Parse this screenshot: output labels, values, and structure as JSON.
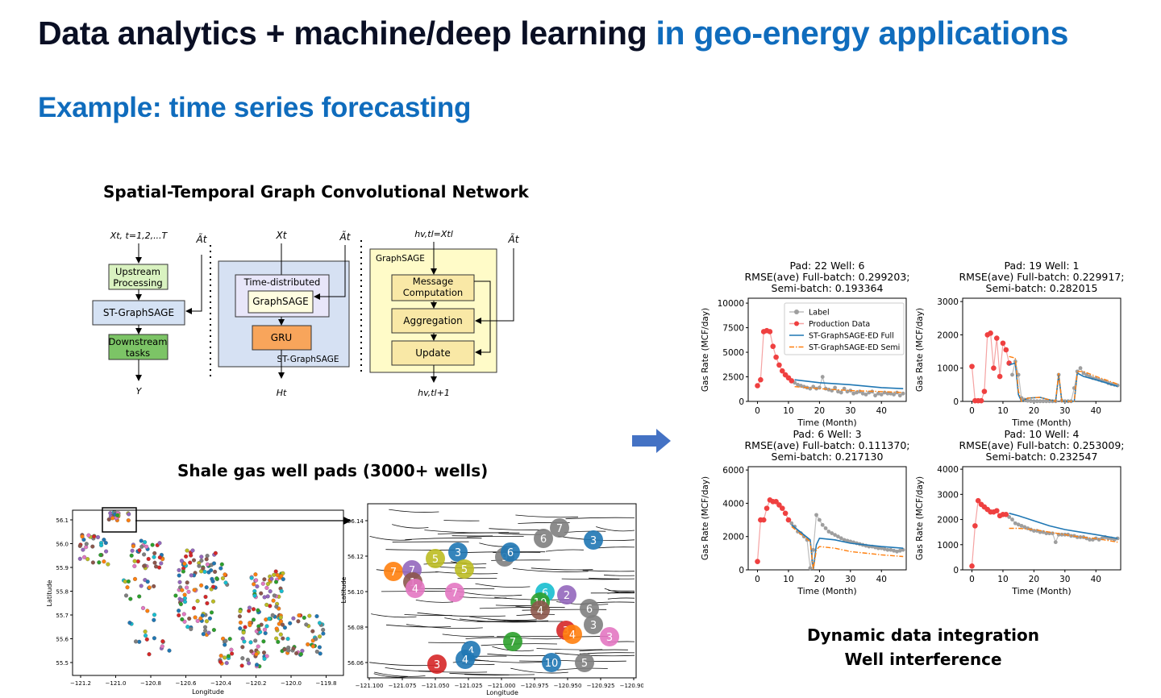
{
  "slide": {
    "title_main": "Data analytics + machine/deep learning",
    "title_accent": "in geo-energy applications",
    "subtitle": "Example: time series forecasting"
  },
  "diagram": {
    "caption": "Spatial-Temporal Graph Convolutional Network",
    "left": {
      "input": "Xt, t=1,2,...T",
      "adj": "Ãt",
      "upstream": [
        "Upstream",
        "Processing"
      ],
      "stgs": "ST-GraphSAGE",
      "downstream": [
        "Downstream",
        "tasks"
      ],
      "output": "Y"
    },
    "middle": {
      "input": "Xt",
      "adj": "Ãt",
      "td": "Time-distributed",
      "gs": "GraphSAGE",
      "gru": "GRU",
      "label": "ST-GraphSAGE",
      "output": "Ht"
    },
    "right": {
      "input": "hv,tl=Xtl",
      "adj": "Ãt",
      "label": "GraphSAGE",
      "msg": [
        "Message",
        "Computation"
      ],
      "agg": "Aggregation",
      "upd": "Update",
      "output": "hv,tl+1"
    }
  },
  "map": {
    "caption": "Shale gas well pads (3000+ wells)",
    "left": {
      "xlabel": "Longitude",
      "ylabel": "Latitude",
      "xticks": [
        "−121.2",
        "−121.0",
        "−120.8",
        "−120.6",
        "−120.4",
        "−120.2",
        "−120.0",
        "−119.8"
      ],
      "yticks": [
        "56.1",
        "56.0",
        "55.9",
        "55.8",
        "55.7",
        "55.6",
        "55.5"
      ]
    },
    "right": {
      "xlabel": "Longitude",
      "ylabel": "Latitude",
      "xticks": [
        "−121.100",
        "−121.075",
        "−121.050",
        "−121.025",
        "−121.000",
        "−120.975",
        "−120.950",
        "−120.925",
        "−120.900"
      ],
      "yticks": [
        "56.14",
        "56.12",
        "56.10",
        "56.08",
        "56.06"
      ]
    },
    "pad_markers": [
      {
        "n": "7",
        "c": "#ff7f0e"
      },
      {
        "n": "7",
        "c": "#9467bd"
      },
      {
        "n": "5",
        "c": "#bcbd22"
      },
      {
        "n": "3",
        "c": "#1f77b4"
      },
      {
        "n": "5",
        "c": "#bcbd22"
      },
      {
        "n": "9",
        "c": "#7f7f7f"
      },
      {
        "n": "6",
        "c": "#1f77b4"
      },
      {
        "n": "6",
        "c": "#7f7f7f"
      },
      {
        "n": "7",
        "c": "#7f7f7f"
      },
      {
        "n": "3",
        "c": "#1f77b4"
      },
      {
        "n": "1",
        "c": "#8c564b"
      },
      {
        "n": "4",
        "c": "#e377c2"
      },
      {
        "n": "7",
        "c": "#e377c2"
      },
      {
        "n": "6",
        "c": "#17becf"
      },
      {
        "n": "2",
        "c": "#9467bd"
      },
      {
        "n": "10",
        "c": "#2ca02c"
      },
      {
        "n": "6",
        "c": "#7f7f7f"
      },
      {
        "n": "4",
        "c": "#8c564b"
      },
      {
        "n": "3",
        "c": "#7f7f7f"
      },
      {
        "n": "3",
        "c": "#d62728"
      },
      {
        "n": "4",
        "c": "#ff7f0e"
      },
      {
        "n": "3",
        "c": "#e377c2"
      },
      {
        "n": "7",
        "c": "#2ca02c"
      },
      {
        "n": "4",
        "c": "#1f77b4"
      },
      {
        "n": "4",
        "c": "#1f77b4"
      },
      {
        "n": "3",
        "c": "#d62728"
      },
      {
        "n": "10",
        "c": "#1f77b4"
      },
      {
        "n": "5",
        "c": "#7f7f7f"
      }
    ]
  },
  "chart_data": [
    {
      "type": "line",
      "title": [
        "Pad: 22 Well: 6",
        "RMSE(ave) Full-batch: 0.299203;",
        "Semi-batch: 0.193364"
      ],
      "xlabel": "Time (Month)",
      "ylabel": "Gas Rate (MCF/day)",
      "xlim": [
        -3,
        48
      ],
      "ylim": [
        0,
        10500
      ],
      "yticks": [
        0,
        2500,
        5000,
        7500,
        10000
      ],
      "xticks": [
        0,
        10,
        20,
        30,
        40
      ],
      "legend": [
        "Label",
        "Production Data",
        "ST-GraphSAGE-ED Full",
        "ST-GraphSAGE-ED Semi"
      ],
      "production": [
        [
          0,
          1600
        ],
        [
          1,
          2200
        ],
        [
          2,
          7100
        ],
        [
          3,
          7200
        ],
        [
          4,
          7100
        ],
        [
          5,
          5600
        ],
        [
          6,
          4500
        ],
        [
          7,
          3700
        ],
        [
          8,
          3100
        ],
        [
          9,
          2700
        ],
        [
          10,
          2400
        ],
        [
          11,
          2100
        ]
      ],
      "label": [
        [
          12,
          1900
        ],
        [
          13,
          1700
        ],
        [
          14,
          1600
        ],
        [
          15,
          1500
        ],
        [
          16,
          1400
        ],
        [
          17,
          1300
        ],
        [
          18,
          1500
        ],
        [
          19,
          1300
        ],
        [
          20,
          1400
        ],
        [
          21,
          2500
        ],
        [
          22,
          1300
        ],
        [
          23,
          1200
        ],
        [
          24,
          1100
        ],
        [
          25,
          1400
        ],
        [
          26,
          1000
        ],
        [
          27,
          900
        ],
        [
          28,
          1300
        ],
        [
          29,
          1000
        ],
        [
          30,
          1100
        ],
        [
          31,
          800
        ],
        [
          32,
          900
        ],
        [
          33,
          1000
        ],
        [
          34,
          800
        ],
        [
          35,
          700
        ],
        [
          36,
          900
        ],
        [
          37,
          1000
        ],
        [
          38,
          600
        ],
        [
          39,
          800
        ],
        [
          40,
          700
        ],
        [
          41,
          900
        ],
        [
          42,
          800
        ],
        [
          43,
          800
        ],
        [
          44,
          700
        ],
        [
          45,
          900
        ],
        [
          46,
          600
        ],
        [
          47,
          800
        ]
      ],
      "full": [
        [
          12,
          2200
        ],
        [
          20,
          1900
        ],
        [
          30,
          1700
        ],
        [
          40,
          1400
        ],
        [
          47,
          1300
        ]
      ],
      "semi": [
        [
          12,
          1500
        ],
        [
          20,
          1300
        ],
        [
          30,
          1100
        ],
        [
          40,
          1000
        ],
        [
          47,
          900
        ]
      ]
    },
    {
      "type": "line",
      "title": [
        "Pad: 19 Well: 1",
        "RMSE(ave) Full-batch: 0.229917;",
        "Semi-batch: 0.282015"
      ],
      "xlabel": "Time (Month)",
      "ylabel": "Gas Rate (MCF/day)",
      "xlim": [
        -3,
        48
      ],
      "ylim": [
        0,
        3100
      ],
      "yticks": [
        0,
        1000,
        2000,
        3000
      ],
      "xticks": [
        0,
        10,
        20,
        30,
        40
      ],
      "production": [
        [
          0,
          1050
        ],
        [
          1,
          20
        ],
        [
          2,
          20
        ],
        [
          3,
          20
        ],
        [
          4,
          300
        ],
        [
          5,
          2000
        ],
        [
          6,
          2050
        ],
        [
          7,
          1000
        ],
        [
          8,
          1900
        ],
        [
          9,
          750
        ],
        [
          10,
          1750
        ],
        [
          11,
          1550
        ],
        [
          12,
          1150
        ]
      ],
      "label": [
        [
          13,
          800
        ],
        [
          14,
          1200
        ],
        [
          15,
          800
        ],
        [
          16,
          100
        ],
        [
          17,
          50
        ],
        [
          18,
          20
        ],
        [
          19,
          10
        ],
        [
          20,
          5
        ],
        [
          21,
          5
        ],
        [
          22,
          5
        ],
        [
          23,
          5
        ],
        [
          24,
          5
        ],
        [
          25,
          5
        ],
        [
          26,
          5
        ],
        [
          27,
          5
        ],
        [
          28,
          800
        ],
        [
          29,
          20
        ],
        [
          30,
          5
        ],
        [
          31,
          5
        ],
        [
          32,
          5
        ],
        [
          33,
          400
        ],
        [
          34,
          900
        ],
        [
          35,
          1000
        ],
        [
          36,
          850
        ],
        [
          37,
          800
        ],
        [
          38,
          750
        ],
        [
          39,
          700
        ],
        [
          40,
          680
        ],
        [
          41,
          650
        ],
        [
          42,
          620
        ],
        [
          43,
          600
        ],
        [
          44,
          550
        ],
        [
          45,
          520
        ],
        [
          46,
          500
        ],
        [
          47,
          480
        ]
      ],
      "full": [
        [
          12,
          1100
        ],
        [
          14,
          1150
        ],
        [
          15,
          200
        ],
        [
          16,
          0
        ],
        [
          18,
          100
        ],
        [
          22,
          120
        ],
        [
          27,
          0
        ],
        [
          28,
          800
        ],
        [
          29,
          0
        ],
        [
          33,
          0
        ],
        [
          34,
          850
        ],
        [
          36,
          750
        ],
        [
          40,
          650
        ],
        [
          47,
          450
        ]
      ],
      "semi": [
        [
          12,
          1350
        ],
        [
          14,
          1300
        ],
        [
          15,
          300
        ],
        [
          16,
          0
        ],
        [
          18,
          100
        ],
        [
          22,
          120
        ],
        [
          27,
          0
        ],
        [
          28,
          850
        ],
        [
          29,
          0
        ],
        [
          33,
          0
        ],
        [
          34,
          900
        ],
        [
          36,
          900
        ],
        [
          40,
          750
        ],
        [
          47,
          520
        ]
      ]
    },
    {
      "type": "line",
      "title": [
        "Pad: 6 Well: 3",
        "RMSE(ave) Full-batch: 0.111370;",
        "Semi-batch: 0.217130"
      ],
      "xlabel": "Time (Month)",
      "ylabel": "Gas Rate (MCF/day)",
      "xlim": [
        -3,
        48
      ],
      "ylim": [
        0,
        6200
      ],
      "yticks": [
        0,
        2000,
        4000,
        6000
      ],
      "xticks": [
        0,
        10,
        20,
        30,
        40
      ],
      "production": [
        [
          0,
          500
        ],
        [
          1,
          3000
        ],
        [
          2,
          3000
        ],
        [
          3,
          3700
        ],
        [
          4,
          4200
        ],
        [
          5,
          4100
        ],
        [
          6,
          4100
        ],
        [
          7,
          3900
        ],
        [
          8,
          3700
        ],
        [
          9,
          3400
        ],
        [
          10,
          3000
        ]
      ],
      "label": [
        [
          11,
          2800
        ],
        [
          12,
          2600
        ],
        [
          13,
          2300
        ],
        [
          14,
          2200
        ],
        [
          15,
          2000
        ],
        [
          16,
          1800
        ],
        [
          17,
          100
        ],
        [
          18,
          1200
        ],
        [
          19,
          3300
        ],
        [
          20,
          3000
        ],
        [
          21,
          2700
        ],
        [
          22,
          2500
        ],
        [
          23,
          2300
        ],
        [
          24,
          2200
        ],
        [
          25,
          2100
        ],
        [
          26,
          2000
        ],
        [
          27,
          1900
        ],
        [
          28,
          1800
        ],
        [
          29,
          1750
        ],
        [
          30,
          1700
        ],
        [
          31,
          1650
        ],
        [
          32,
          1600
        ],
        [
          33,
          1550
        ],
        [
          34,
          1500
        ],
        [
          35,
          1450
        ],
        [
          36,
          1400
        ],
        [
          37,
          1400
        ],
        [
          38,
          1350
        ],
        [
          39,
          1300
        ],
        [
          40,
          1300
        ],
        [
          41,
          1250
        ],
        [
          42,
          1200
        ],
        [
          43,
          1200
        ],
        [
          44,
          1150
        ],
        [
          45,
          1100
        ],
        [
          46,
          1150
        ],
        [
          47,
          1200
        ]
      ],
      "full": [
        [
          11,
          2700
        ],
        [
          15,
          2100
        ],
        [
          17,
          1800
        ],
        [
          18,
          0
        ],
        [
          19,
          1500
        ],
        [
          20,
          1900
        ],
        [
          25,
          1800
        ],
        [
          30,
          1600
        ],
        [
          40,
          1400
        ],
        [
          47,
          1300
        ]
      ],
      "semi": [
        [
          11,
          2600
        ],
        [
          15,
          2000
        ],
        [
          17,
          1700
        ],
        [
          18,
          0
        ],
        [
          19,
          1200
        ],
        [
          20,
          1400
        ],
        [
          25,
          1300
        ],
        [
          30,
          1100
        ],
        [
          40,
          900
        ],
        [
          47,
          800
        ]
      ]
    },
    {
      "type": "line",
      "title": [
        "Pad: 10 Well: 4",
        "RMSE(ave) Full-batch: 0.253009;",
        "Semi-batch: 0.232547"
      ],
      "xlabel": "Time (Month)",
      "ylabel": "Gas Rate (MCF/day)",
      "xlim": [
        -3,
        48
      ],
      "ylim": [
        0,
        4100
      ],
      "yticks": [
        0,
        1000,
        2000,
        3000,
        4000
      ],
      "xticks": [
        0,
        10,
        20,
        30,
        40
      ],
      "production": [
        [
          0,
          150
        ],
        [
          1,
          1750
        ],
        [
          2,
          2750
        ],
        [
          3,
          2600
        ],
        [
          4,
          2500
        ],
        [
          5,
          2400
        ],
        [
          6,
          2300
        ],
        [
          7,
          2300
        ],
        [
          8,
          2350
        ],
        [
          9,
          2150
        ],
        [
          10,
          2200
        ],
        [
          11,
          2200
        ]
      ],
      "label": [
        [
          12,
          2100
        ],
        [
          13,
          2000
        ],
        [
          14,
          1850
        ],
        [
          15,
          1800
        ],
        [
          16,
          1750
        ],
        [
          17,
          1700
        ],
        [
          18,
          1650
        ],
        [
          19,
          1600
        ],
        [
          20,
          1550
        ],
        [
          21,
          1550
        ],
        [
          22,
          1500
        ],
        [
          23,
          1500
        ],
        [
          24,
          1450
        ],
        [
          25,
          1450
        ],
        [
          26,
          1450
        ],
        [
          27,
          1100
        ],
        [
          28,
          1400
        ],
        [
          29,
          1400
        ],
        [
          30,
          1400
        ],
        [
          31,
          1400
        ],
        [
          32,
          1350
        ],
        [
          33,
          1350
        ],
        [
          34,
          1300
        ],
        [
          35,
          1300
        ],
        [
          36,
          1300
        ],
        [
          37,
          1250
        ],
        [
          38,
          1200
        ],
        [
          39,
          1200
        ],
        [
          40,
          1250
        ],
        [
          41,
          1200
        ],
        [
          42,
          1250
        ],
        [
          43,
          1300
        ],
        [
          44,
          1250
        ],
        [
          45,
          1250
        ],
        [
          46,
          1200
        ],
        [
          47,
          1250
        ]
      ],
      "full": [
        [
          12,
          2250
        ],
        [
          15,
          2150
        ],
        [
          20,
          1950
        ],
        [
          25,
          1750
        ],
        [
          30,
          1600
        ],
        [
          35,
          1500
        ],
        [
          40,
          1400
        ],
        [
          47,
          1250
        ]
      ],
      "semi": [
        [
          12,
          1650
        ],
        [
          15,
          1650
        ],
        [
          20,
          1600
        ],
        [
          25,
          1500
        ],
        [
          30,
          1400
        ],
        [
          35,
          1300
        ],
        [
          40,
          1250
        ],
        [
          47,
          1100
        ]
      ]
    }
  ],
  "right_captions": [
    "Dynamic data integration",
    "Well interference"
  ]
}
